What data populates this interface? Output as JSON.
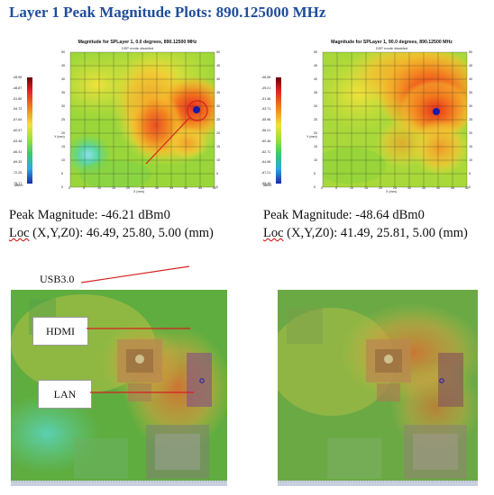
{
  "page": {
    "title": "Layer 1 Peak Magnitude Plots: 890.125000 MHz"
  },
  "chart_data": [
    {
      "type": "heatmap",
      "title": "Magnitude for SPLayer 1, 0.0 degrees, 890.12500 MHz",
      "subtitle": "DSP mode disabled",
      "xlabel": "X (mm)",
      "ylabel": "Y (mm)",
      "x_ticks": [
        "0",
        "5",
        "10",
        "15",
        "20",
        "25",
        "30",
        "35",
        "40",
        "45",
        "50"
      ],
      "y_ticks": [
        "0",
        "5",
        "10",
        "15",
        "20",
        "25",
        "30",
        "35",
        "40",
        "45",
        "50"
      ],
      "colorbar_ticks": [
        "-45.96",
        "-48.87",
        "-51.80",
        "-54.72",
        "-57.64",
        "-60.57",
        "-63.48",
        "-66.41",
        "-69.33",
        "-72.25",
        "-75.17"
      ],
      "colorbar_label": "dBm0",
      "peak_magnitude_dbm0": -46.21,
      "peak_loc": {
        "x": 46.49,
        "y": 25.8,
        "z0": 5.0
      }
    },
    {
      "type": "heatmap",
      "title": "Magnitude for SPLayer 1, 90.0 degrees, 890.12500 MHz",
      "subtitle": "DSP mode disabled",
      "xlabel": "X (mm)",
      "ylabel": "Y (mm)",
      "x_ticks": [
        "0",
        "5",
        "10",
        "15",
        "20",
        "25",
        "30",
        "35",
        "40",
        "45",
        "50"
      ],
      "y_ticks": [
        "0",
        "5",
        "10",
        "15",
        "20",
        "25",
        "30",
        "35",
        "40",
        "45",
        "50"
      ],
      "colorbar_ticks": [
        "-46.96",
        "-49.21",
        "-51.46",
        "-53.71",
        "-55.96",
        "-58.21",
        "-60.46",
        "-62.71",
        "-64.96",
        "-67.21",
        "-69.46"
      ],
      "colorbar_label": "dBm0",
      "peak_magnitude_dbm0": -48.64,
      "peak_loc": {
        "x": 41.49,
        "y": 25.81,
        "z0": 5.0
      }
    }
  ],
  "results": {
    "left": {
      "peak_label": "Peak Magnitude: -46.21 dBm0",
      "loc_word": "Loc",
      "loc_rest": " (X,Y,Z0): 46.49, 25.80, 5.00 (mm)"
    },
    "right": {
      "peak_label": "Peak Magnitude: -48.64 dBm0",
      "loc_word": "Loc",
      "loc_rest": " (X,Y,Z0): 41.49, 25.81, 5.00 (mm)"
    }
  },
  "annotations": {
    "usb": "USB3.0",
    "hdmi": "HDMI",
    "lan": "LAN"
  },
  "colors": {
    "title": "#1f4e9c",
    "callout_line": "#d42020",
    "peak_marker": "#1a1aa8"
  }
}
